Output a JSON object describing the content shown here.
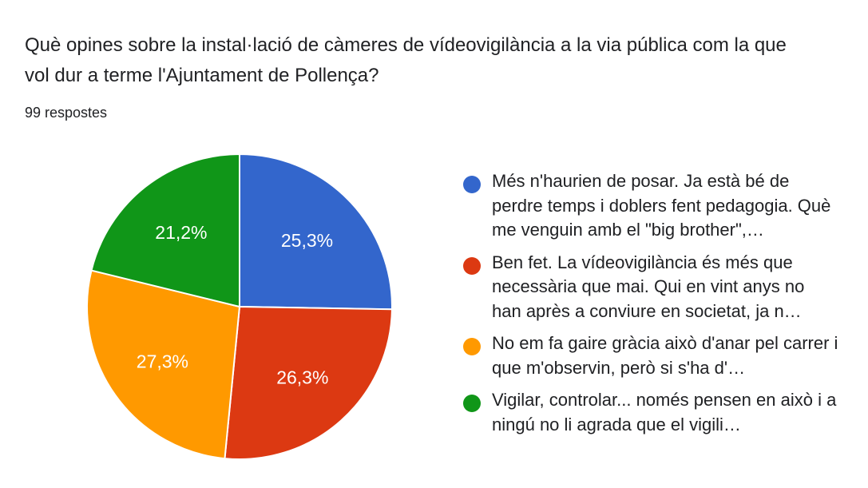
{
  "question": {
    "title": "Què opines sobre la instal·lació de càmeres de vídeovigilància a la via pública com la que vol dur a terme l'Ajuntament de Pollença?",
    "response_count": "99 respostes"
  },
  "colors": {
    "blue": "#3366cc",
    "red": "#dc3912",
    "orange": "#ff9900",
    "green": "#109618"
  },
  "legend": [
    {
      "text": "Més n'haurien de posar. Ja està bé de perdre temps i doblers fent pedagogia. Què me venguin amb el \"big brother\",…",
      "color": "#3366cc"
    },
    {
      "text": "Ben fet. La vídeovigilància és més que necessària que mai. Qui en vint anys no han après a conviure en societat, ja n…",
      "color": "#dc3912"
    },
    {
      "text": "No em fa gaire gràcia això d'anar pel carrer i que m'observin, però si s'ha d'…",
      "color": "#ff9900"
    },
    {
      "text": "Vigilar, controlar... només pensen en això i a ningú no li agrada que el vigili…",
      "color": "#109618"
    }
  ],
  "chart_data": {
    "type": "pie",
    "title": "Què opines sobre la instal·lació de càmeres de vídeovigilància a la via pública com la que vol dur a terme l'Ajuntament de Pollença?",
    "total_responses": 99,
    "legend_position": "right",
    "slices": [
      {
        "label": "Més n'haurien de posar. Ja està bé de perdre temps i doblers fent pedagogia. Què me venguin amb el \"big brother\",…",
        "value": 25.3,
        "display": "25,3%",
        "color": "#3366cc"
      },
      {
        "label": "Ben fet. La vídeovigilància és més que necessària que mai. Qui en vint anys no han après a conviure en societat, ja n…",
        "value": 26.3,
        "display": "26,3%",
        "color": "#dc3912"
      },
      {
        "label": "No em fa gaire gràcia això d'anar pel carrer i que m'observin, però si s'ha d'…",
        "value": 27.3,
        "display": "27,3%",
        "color": "#ff9900"
      },
      {
        "label": "Vigilar, controlar... només pensen en això i a ningú no li agrada que el vigili…",
        "value": 21.2,
        "display": "21,2%",
        "color": "#109618"
      }
    ]
  }
}
